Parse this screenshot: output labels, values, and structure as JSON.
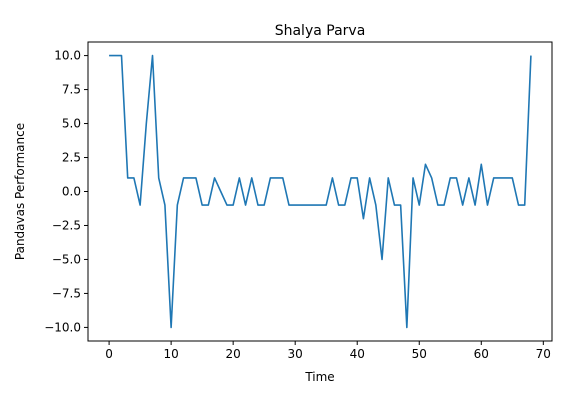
{
  "chart_data": {
    "type": "line",
    "title": "Shalya Parva",
    "xlabel": "Time",
    "ylabel": "Pandavas Performance",
    "xlim": [
      -3.4,
      71.4
    ],
    "ylim": [
      -11.0,
      11.0
    ],
    "xticks": [
      0,
      10,
      20,
      30,
      40,
      50,
      60,
      70
    ],
    "xtick_labels": [
      "0",
      "10",
      "20",
      "30",
      "40",
      "50",
      "60",
      "70"
    ],
    "yticks": [
      10.0,
      7.5,
      5.0,
      2.5,
      0.0,
      -2.5,
      -5.0,
      -7.5,
      -10.0
    ],
    "ytick_labels": [
      "10.0",
      "7.5",
      "5.0",
      "2.5",
      "0.0",
      "−2.5",
      "−5.0",
      "−7.5",
      "−10.0"
    ],
    "grid": false,
    "line_color": "#1f77b4",
    "series": [
      {
        "x": [
          0,
          1,
          2,
          3,
          4,
          5,
          6,
          7,
          8,
          9,
          10,
          11,
          12,
          13,
          14,
          15,
          16,
          17,
          18,
          19,
          20,
          21,
          22,
          23,
          24,
          25,
          26,
          27,
          28,
          29,
          30,
          31,
          32,
          33,
          34,
          35,
          36,
          37,
          38,
          39,
          40,
          41,
          42,
          43,
          44,
          45,
          46,
          47,
          48,
          49,
          50,
          51,
          52,
          53,
          54,
          55,
          56,
          57,
          58,
          59,
          60,
          61,
          62,
          63,
          64,
          65,
          66,
          67,
          68
        ],
        "values": [
          10,
          10,
          10,
          1,
          1,
          -1,
          5,
          10,
          1,
          -1,
          -10,
          -1,
          1,
          1,
          1,
          -1,
          -1,
          1,
          0,
          -1,
          -1,
          1,
          -1,
          1,
          -1,
          -1,
          1,
          1,
          1,
          -1,
          -1,
          -1,
          -1,
          -1,
          -1,
          -1,
          1,
          -1,
          -1,
          1,
          1,
          -2,
          1,
          -1,
          -5,
          1,
          -1,
          -1,
          -10,
          1,
          -1,
          2,
          1,
          -1,
          -1,
          1,
          1,
          -1,
          1,
          -1,
          2,
          -1,
          1,
          1,
          1,
          1,
          -1,
          -1,
          10
        ]
      }
    ]
  }
}
